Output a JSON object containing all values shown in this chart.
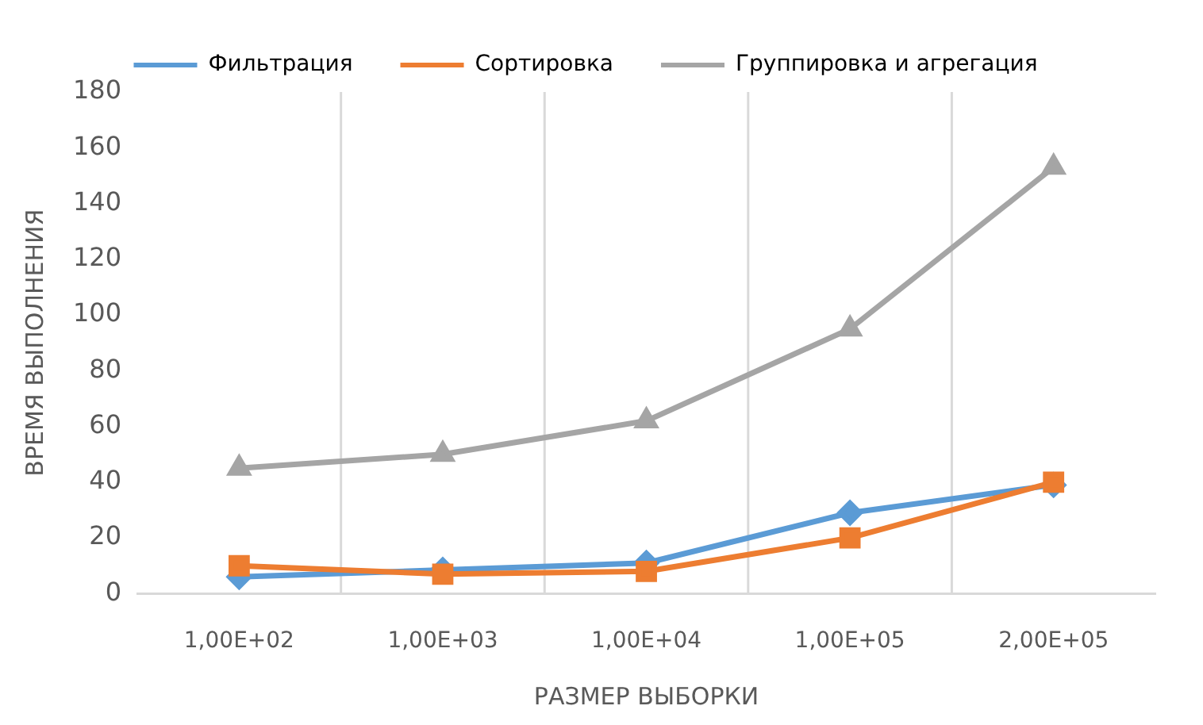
{
  "chart_data": {
    "type": "line",
    "xlabel": "РАЗМЕР ВЫБОРКИ",
    "ylabel": "ВРЕМЯ ВЫПОЛНЕНИЯ",
    "categories": [
      "1,00E+02",
      "1,00E+03",
      "1,00E+04",
      "1,00E+05",
      "2,00E+05"
    ],
    "series": [
      {
        "name": "Фильтрация",
        "color": "#5b9bd5",
        "marker": "diamond",
        "values": [
          6,
          8.5,
          11,
          29,
          39
        ]
      },
      {
        "name": "Сортировка",
        "color": "#ed7d31",
        "marker": "square",
        "values": [
          10,
          7,
          8,
          20,
          40
        ]
      },
      {
        "name": "Группировка и агрегация",
        "color": "#a5a5a5",
        "marker": "triangle",
        "values": [
          45,
          50,
          62,
          95,
          153
        ]
      }
    ],
    "ylim": [
      0,
      180
    ],
    "yticks": [
      0,
      20,
      40,
      60,
      80,
      100,
      120,
      140,
      160,
      180
    ],
    "grid": "x",
    "legend": "top"
  }
}
